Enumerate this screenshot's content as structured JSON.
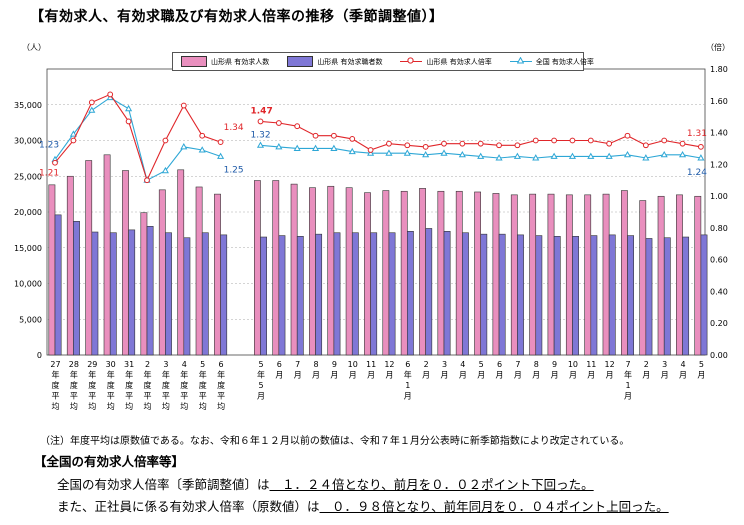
{
  "title": "【有効求人、有効求職及び有効求人倍率の推移（季節調整値）】",
  "chart_data": {
    "type": "bar",
    "y_left_label": "（人）",
    "y_right_label": "（倍）",
    "y_left_ticks": [
      "0",
      "5,000",
      "10,000",
      "15,000",
      "20,000",
      "25,000",
      "30,000",
      "35,000"
    ],
    "y_right_ticks": [
      "0.00",
      "0.20",
      "0.40",
      "0.60",
      "0.80",
      "1.00",
      "1.20",
      "1.40",
      "1.60",
      "1.80"
    ],
    "ylim_left": [
      0,
      40000
    ],
    "ylim_right": [
      0,
      1.8
    ],
    "categories_annual": [
      [
        "27",
        "年",
        "度",
        "平",
        "均"
      ],
      [
        "28",
        "年",
        "度",
        "平",
        "均"
      ],
      [
        "29",
        "年",
        "度",
        "平",
        "均"
      ],
      [
        "30",
        "年",
        "度",
        "平",
        "均"
      ],
      [
        "31",
        "年",
        "度",
        "平",
        "均"
      ],
      [
        "2",
        "年",
        "度",
        "平",
        "均"
      ],
      [
        "3",
        "年",
        "度",
        "平",
        "均"
      ],
      [
        "4",
        "年",
        "度",
        "平",
        "均"
      ],
      [
        "5",
        "年",
        "度",
        "平",
        "均"
      ],
      [
        "6",
        "年",
        "度",
        "平",
        "均"
      ]
    ],
    "categories_monthly": [
      [
        "5",
        "年",
        "5",
        "月"
      ],
      [
        "6",
        "月"
      ],
      [
        "7",
        "月"
      ],
      [
        "8",
        "月"
      ],
      [
        "9",
        "月"
      ],
      [
        "10",
        "月"
      ],
      [
        "11",
        "月"
      ],
      [
        "12",
        "月"
      ],
      [
        "6",
        "年",
        "1",
        "月"
      ],
      [
        "2",
        "月"
      ],
      [
        "3",
        "月"
      ],
      [
        "4",
        "月"
      ],
      [
        "5",
        "月"
      ],
      [
        "6",
        "月"
      ],
      [
        "7",
        "月"
      ],
      [
        "8",
        "月"
      ],
      [
        "9",
        "月"
      ],
      [
        "10",
        "月"
      ],
      [
        "11",
        "月"
      ],
      [
        "12",
        "月"
      ],
      [
        "7",
        "年",
        "1",
        "月"
      ],
      [
        "2",
        "月"
      ],
      [
        "3",
        "月"
      ],
      [
        "4",
        "月"
      ],
      [
        "5",
        "月"
      ]
    ],
    "series": [
      {
        "name": "山形県 有効求人数",
        "type": "bar",
        "color": "#e98fbe",
        "annual": [
          23800,
          25000,
          27200,
          28000,
          25800,
          19900,
          23100,
          25900,
          23500,
          22500
        ],
        "monthly": [
          24400,
          24400,
          23900,
          23400,
          23600,
          23400,
          22700,
          23000,
          22900,
          23300,
          22900,
          22900,
          22800,
          22600,
          22400,
          22500,
          22500,
          22400,
          22400,
          22500,
          23000,
          21600,
          22200,
          22400,
          22200
        ]
      },
      {
        "name": "山形県 有効求職者数",
        "type": "bar",
        "color": "#7f77d6",
        "annual": [
          19600,
          18700,
          17200,
          17100,
          17500,
          18000,
          17100,
          16400,
          17100,
          16800
        ],
        "monthly": [
          16500,
          16700,
          16600,
          16900,
          17100,
          17100,
          17100,
          17100,
          17300,
          17700,
          17300,
          17100,
          16900,
          16900,
          16800,
          16700,
          16600,
          16600,
          16700,
          16800,
          16700,
          16300,
          16400,
          16500,
          16800
        ]
      },
      {
        "name": "山形県 有効求人倍率",
        "type": "line",
        "color": "#e0262a",
        "annual": [
          1.21,
          1.35,
          1.59,
          1.64,
          1.47,
          1.1,
          1.35,
          1.57,
          1.38,
          1.34
        ],
        "monthly": [
          1.47,
          1.46,
          1.44,
          1.38,
          1.38,
          1.36,
          1.29,
          1.33,
          1.32,
          1.31,
          1.33,
          1.33,
          1.33,
          1.32,
          1.32,
          1.35,
          1.35,
          1.35,
          1.35,
          1.33,
          1.38,
          1.32,
          1.35,
          1.33,
          1.31
        ]
      },
      {
        "name": "全国 有効求人倍率",
        "type": "line",
        "color": "#2ea7d6",
        "annual": [
          1.23,
          1.39,
          1.54,
          1.62,
          1.55,
          1.1,
          1.16,
          1.31,
          1.29,
          1.25
        ],
        "monthly": [
          1.32,
          1.31,
          1.3,
          1.3,
          1.3,
          1.28,
          1.27,
          1.27,
          1.27,
          1.26,
          1.27,
          1.26,
          1.25,
          1.24,
          1.25,
          1.24,
          1.25,
          1.25,
          1.25,
          1.25,
          1.26,
          1.24,
          1.26,
          1.26,
          1.24
        ]
      }
    ],
    "data_labels": {
      "pref_first_annual": "1.21",
      "nat_first_annual": "1.23",
      "pref_last_annual": "1.34",
      "nat_last_annual": "1.25",
      "pref_first_month": "1.47",
      "nat_first_month": "1.32",
      "pref_last_month": "1.31",
      "nat_last_month": "1.24"
    },
    "grid": true,
    "legend_position": "top"
  },
  "legend": {
    "item1": "山形県 有効求人数",
    "item2": "山形県 有効求職者数",
    "item3": "山形県 有効求人倍率",
    "item4": "全国 有効求人倍率"
  },
  "note": "（注）年度平均は原数値である。なお、令和６年１２月以前の数値は、令和７年１月分公表時に新季節指数により改定されている。",
  "section_title": "【全国の有効求人倍率等】",
  "summary": {
    "line1_prefix": "全国の有効求人倍率〔季節調整値〕は",
    "line1_body": "　１．２４倍となり、前月を０．０２ポイント下回った。",
    "line2_prefix": "また、正社員に係る有効求人倍率（原数値）は",
    "line2_body": "　０．９８倍となり、前年同月を０．０４ポイント上回った。"
  }
}
